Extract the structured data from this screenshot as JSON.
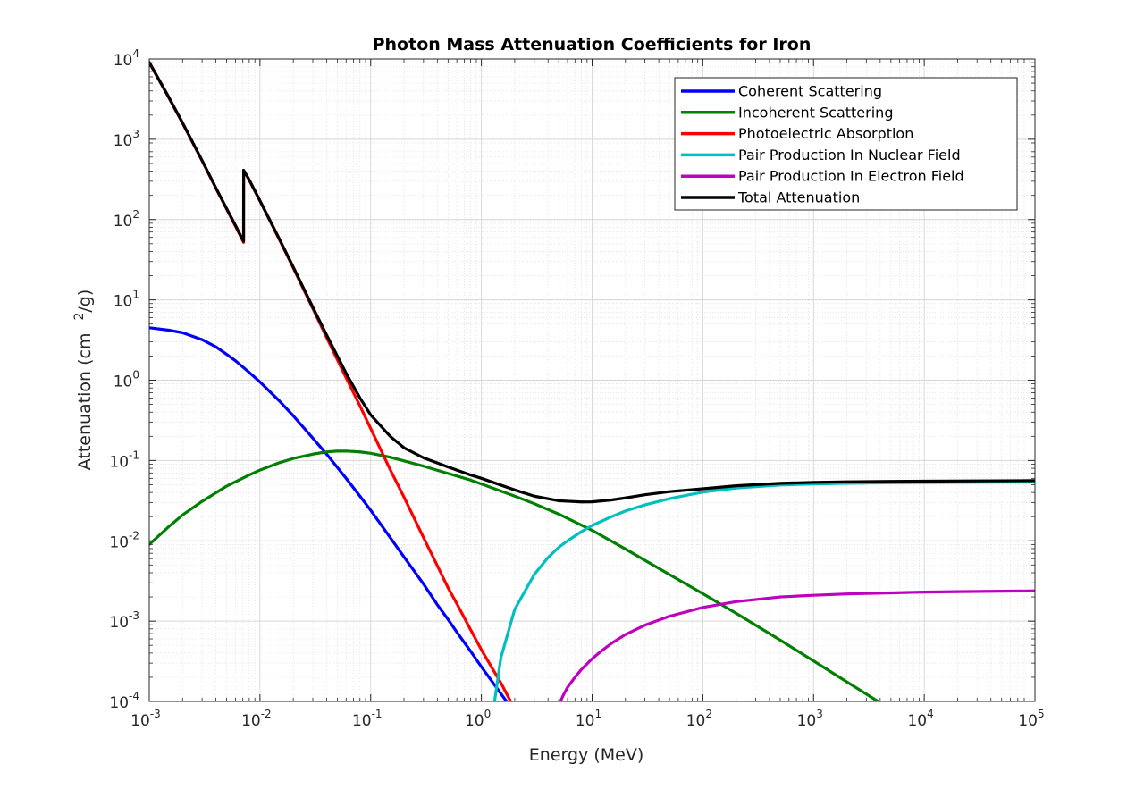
{
  "chart_data": {
    "type": "line",
    "title": "Photon Mass Attenuation Coefficients for Iron",
    "xlabel": "Energy (MeV)",
    "ylabel_main": "Attenuation (cm",
    "ylabel_sup": "2",
    "ylabel_tail": "/g)",
    "x_scale": "log",
    "y_scale": "log",
    "xlim": [
      0.001,
      100000
    ],
    "ylim": [
      0.0001,
      10000
    ],
    "grid": true,
    "minor_grid": true,
    "legend_position": "top-right",
    "x_ticks": [
      {
        "base": "10",
        "exp": "-3",
        "value": 0.001
      },
      {
        "base": "10",
        "exp": "-2",
        "value": 0.01
      },
      {
        "base": "10",
        "exp": "-1",
        "value": 0.1
      },
      {
        "base": "10",
        "exp": "0",
        "value": 1
      },
      {
        "base": "10",
        "exp": "1",
        "value": 10
      },
      {
        "base": "10",
        "exp": "2",
        "value": 100
      },
      {
        "base": "10",
        "exp": "3",
        "value": 1000
      },
      {
        "base": "10",
        "exp": "4",
        "value": 10000
      },
      {
        "base": "10",
        "exp": "5",
        "value": 100000
      }
    ],
    "y_ticks": [
      {
        "base": "10",
        "exp": "-4",
        "value": 0.0001
      },
      {
        "base": "10",
        "exp": "-3",
        "value": 0.001
      },
      {
        "base": "10",
        "exp": "-2",
        "value": 0.01
      },
      {
        "base": "10",
        "exp": "-1",
        "value": 0.1
      },
      {
        "base": "10",
        "exp": "0",
        "value": 1
      },
      {
        "base": "10",
        "exp": "1",
        "value": 10
      },
      {
        "base": "10",
        "exp": "2",
        "value": 100
      },
      {
        "base": "10",
        "exp": "3",
        "value": 1000
      },
      {
        "base": "10",
        "exp": "4",
        "value": 10000
      }
    ],
    "series": [
      {
        "name": "Coherent Scattering",
        "color": "#0000ff",
        "x": [
          0.001,
          0.0015,
          0.002,
          0.003,
          0.004,
          0.005,
          0.006,
          0.008,
          0.01,
          0.015,
          0.02,
          0.03,
          0.04,
          0.05,
          0.06,
          0.08,
          0.1,
          0.15,
          0.2,
          0.3,
          0.4,
          0.5,
          0.6,
          0.8,
          1,
          1.5,
          2,
          2.1
        ],
        "y": [
          4.5,
          4.2,
          3.9,
          3.2,
          2.6,
          2.1,
          1.75,
          1.25,
          0.95,
          0.55,
          0.36,
          0.19,
          0.12,
          0.082,
          0.06,
          0.036,
          0.024,
          0.011,
          0.0063,
          0.0029,
          0.0016,
          0.00105,
          0.00073,
          0.00042,
          0.00027,
          0.000125,
          7.25e-05,
          6.58e-05
        ]
      },
      {
        "name": "Incoherent Scattering",
        "color": "#008000",
        "x": [
          0.001,
          0.0015,
          0.002,
          0.003,
          0.005,
          0.008,
          0.01,
          0.015,
          0.02,
          0.03,
          0.04,
          0.05,
          0.06,
          0.08,
          0.1,
          0.15,
          0.2,
          0.3,
          0.5,
          0.8,
          1,
          2,
          3,
          5,
          10,
          20,
          50,
          100,
          200,
          500,
          1000,
          2000,
          4000
        ],
        "y": [
          0.009,
          0.015,
          0.021,
          0.031,
          0.048,
          0.066,
          0.076,
          0.094,
          0.106,
          0.12,
          0.128,
          0.131,
          0.131,
          0.128,
          0.123,
          0.11,
          0.099,
          0.085,
          0.069,
          0.057,
          0.051,
          0.036,
          0.029,
          0.0215,
          0.0135,
          0.0079,
          0.0038,
          0.0022,
          0.00125,
          0.00058,
          0.00032,
          0.000175,
          9.62e-05
        ]
      },
      {
        "name": "Photoelectric Absorption",
        "color": "#ff0000",
        "x": [
          0.001,
          0.0015,
          0.002,
          0.003,
          0.004,
          0.005,
          0.006,
          0.00711,
          0.00712,
          0.008,
          0.01,
          0.015,
          0.02,
          0.03,
          0.04,
          0.05,
          0.06,
          0.08,
          0.1,
          0.15,
          0.2,
          0.3,
          0.4,
          0.5,
          0.6,
          0.8,
          1,
          1.5,
          2,
          2.1
        ],
        "y": [
          9000,
          3300,
          1580,
          540,
          245,
          135,
          83,
          52,
          410,
          310,
          170,
          56,
          25,
          7.8,
          3.4,
          1.8,
          1.07,
          0.48,
          0.25,
          0.077,
          0.035,
          0.011,
          0.0049,
          0.0026,
          0.00165,
          0.00078,
          0.00044,
          0.00017,
          8e-05,
          6.85e-05
        ]
      },
      {
        "name": "Pair Production In Nuclear Field",
        "color": "#00bfbf",
        "x": [
          1.3,
          1.5,
          2,
          3,
          4,
          5,
          6,
          8,
          10,
          15,
          20,
          30,
          50,
          100,
          200,
          500,
          1000,
          2000,
          5000,
          10000,
          20000,
          50000,
          100000
        ],
        "y": [
          9e-05,
          0.00035,
          0.0014,
          0.0038,
          0.0062,
          0.0083,
          0.01,
          0.013,
          0.0155,
          0.02,
          0.0235,
          0.028,
          0.0335,
          0.0405,
          0.0455,
          0.0495,
          0.051,
          0.052,
          0.0528,
          0.0532,
          0.0535,
          0.0537,
          0.0538
        ]
      },
      {
        "name": "Pair Production In Electron Field",
        "color": "#bf00bf",
        "x": [
          5,
          5.5,
          6,
          7,
          8,
          10,
          12,
          15,
          20,
          30,
          50,
          100,
          200,
          500,
          1000,
          2000,
          5000,
          10000,
          20000,
          50000,
          100000
        ],
        "y": [
          9e-05,
          0.00012,
          0.00015,
          0.0002,
          0.00025,
          0.00034,
          0.00042,
          0.00053,
          0.00068,
          0.00089,
          0.00115,
          0.00148,
          0.00175,
          0.002,
          0.0021,
          0.00218,
          0.00225,
          0.0023,
          0.00233,
          0.00236,
          0.00238
        ]
      },
      {
        "name": "Total Attenuation",
        "color": "#000000",
        "x": [
          0.001,
          0.0015,
          0.002,
          0.003,
          0.004,
          0.005,
          0.006,
          0.00711,
          0.00712,
          0.008,
          0.01,
          0.015,
          0.02,
          0.03,
          0.04,
          0.05,
          0.06,
          0.08,
          0.1,
          0.15,
          0.2,
          0.3,
          0.5,
          0.8,
          1,
          2,
          3,
          5,
          8,
          10,
          15,
          20,
          30,
          50,
          100,
          200,
          500,
          1000,
          2000,
          5000,
          10000,
          100000
        ],
        "y": [
          9100,
          3350,
          1600,
          545,
          248,
          137,
          85,
          53.5,
          412,
          312,
          172,
          57,
          25.6,
          8.1,
          3.65,
          2.0,
          1.22,
          0.6,
          0.37,
          0.2,
          0.144,
          0.108,
          0.083,
          0.066,
          0.06,
          0.043,
          0.036,
          0.0315,
          0.0305,
          0.0306,
          0.0323,
          0.0342,
          0.0375,
          0.041,
          0.0445,
          0.0485,
          0.052,
          0.0535,
          0.0542,
          0.0549,
          0.0553,
          0.0562
        ]
      }
    ]
  }
}
